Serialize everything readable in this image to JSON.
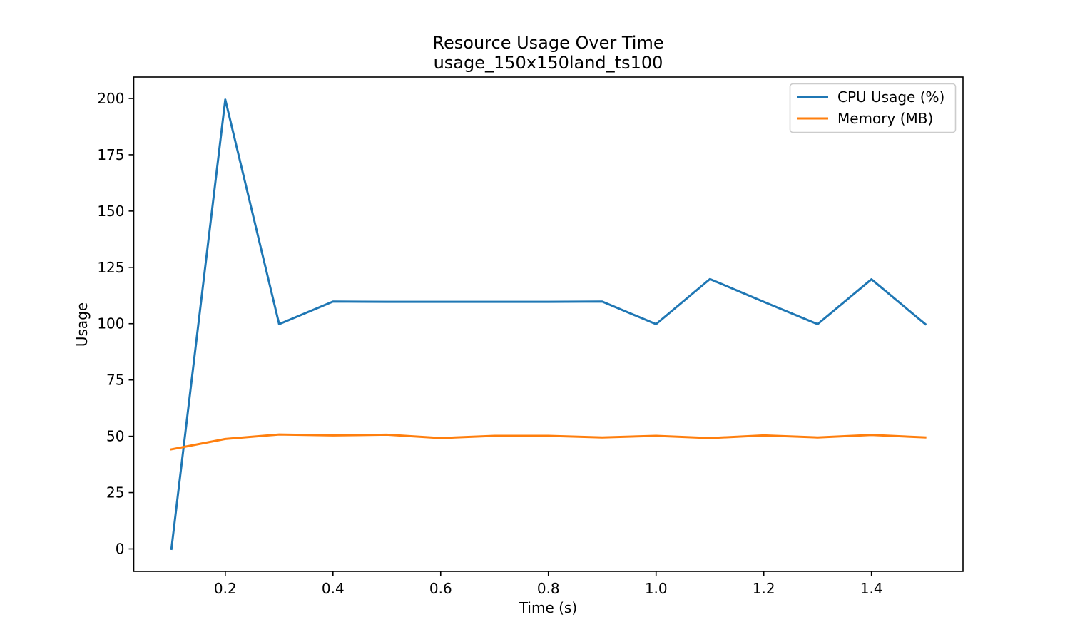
{
  "chart_data": {
    "type": "line",
    "title": "Resource Usage Over Time",
    "subtitle": "usage_150x150land_ts100",
    "xlabel": "Time (s)",
    "ylabel": "Usage",
    "xlim": [
      0.03,
      1.57
    ],
    "ylim": [
      -9.98,
      209.5
    ],
    "xticks": [
      0.2,
      0.4,
      0.6,
      0.8,
      1.0,
      1.2,
      1.4
    ],
    "xtick_labels": [
      "0.2",
      "0.4",
      "0.6",
      "0.8",
      "1.0",
      "1.2",
      "1.4"
    ],
    "yticks": [
      0,
      25,
      50,
      75,
      100,
      125,
      150,
      175,
      200
    ],
    "ytick_labels": [
      "0",
      "25",
      "50",
      "75",
      "100",
      "125",
      "150",
      "175",
      "200"
    ],
    "grid": false,
    "legend_position": "top-right",
    "x": [
      0.1,
      0.2,
      0.3,
      0.4,
      0.5,
      0.6,
      0.7,
      0.8,
      0.9,
      1.0,
      1.1,
      1.2,
      1.3,
      1.4,
      1.5
    ],
    "series": [
      {
        "name": "CPU Usage (%)",
        "color": "#1f77b4",
        "values": [
          0,
          199.5,
          99.8,
          109.8,
          109.7,
          109.7,
          109.7,
          109.7,
          109.8,
          99.8,
          119.8,
          109.7,
          99.8,
          119.7,
          99.8
        ]
      },
      {
        "name": "Memory (MB)",
        "color": "#ff7f0e",
        "values": [
          44.2,
          48.8,
          50.8,
          50.4,
          50.7,
          49.2,
          50.2,
          50.2,
          49.5,
          50.2,
          49.2,
          50.4,
          49.5,
          50.6,
          49.5
        ]
      }
    ]
  }
}
